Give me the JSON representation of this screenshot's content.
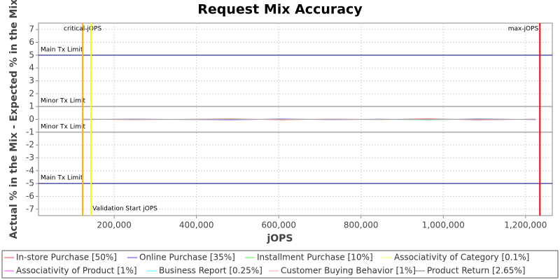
{
  "chart_data": {
    "type": "line",
    "title": "Request Mix Accuracy",
    "x_label": "jOPS",
    "y_label": "Actual % in the Mix - Expected % in the Mix",
    "xlim": [
      16000,
      1265000
    ],
    "ylim": [
      -7.5,
      7.5
    ],
    "xticks": [
      {
        "value": 200000,
        "label": "200,000"
      },
      {
        "value": 400000,
        "label": "400,000"
      },
      {
        "value": 600000,
        "label": "600,000"
      },
      {
        "value": 800000,
        "label": "800,000"
      },
      {
        "value": 1000000,
        "label": "1,000,000"
      },
      {
        "value": 1200000,
        "label": "1,200,000"
      }
    ],
    "yticks": [
      -7,
      -6,
      -5,
      -4,
      -3,
      -2,
      -1,
      0,
      1,
      2,
      3,
      4,
      5,
      6,
      7
    ],
    "grid": true,
    "legend": "bottom",
    "x": [
      125000,
      245000,
      365000,
      485000,
      605000,
      725000,
      845000,
      965000,
      1085000,
      1225000
    ],
    "series": [
      {
        "name": "In-store Purchase [50%]",
        "color": "#ff8080",
        "values": [
          0.02,
          -0.03,
          0.01,
          0.05,
          -0.04,
          0.03,
          -0.02,
          0.06,
          -0.05,
          0.02
        ]
      },
      {
        "name": "Online Purchase [35%]",
        "color": "#8080ff",
        "values": [
          -0.02,
          0.03,
          -0.01,
          -0.05,
          0.04,
          -0.03,
          0.02,
          -0.04,
          0.05,
          -0.02
        ]
      },
      {
        "name": "Installment Purchase [10%]",
        "color": "#80ff80",
        "values": [
          0.01,
          0.0,
          -0.01,
          0.01,
          0.0,
          0.01,
          -0.01,
          -0.02,
          0.01,
          0.0
        ]
      },
      {
        "name": "Associativity of Category [0.1%]",
        "color": "#ffff80",
        "values": [
          0.0,
          0.0,
          0.0,
          0.0,
          0.0,
          0.0,
          0.0,
          0.0,
          0.0,
          0.0
        ]
      },
      {
        "name": "Associativity of Product [1%]",
        "color": "#ff80ff",
        "values": [
          0.0,
          0.01,
          0.0,
          -0.01,
          0.0,
          0.01,
          0.0,
          0.0,
          -0.01,
          0.0
        ]
      },
      {
        "name": "Business Report [0.25%]",
        "color": "#80ffff",
        "values": [
          0.0,
          0.0,
          0.01,
          0.0,
          0.0,
          0.0,
          0.0,
          0.01,
          0.0,
          0.0
        ]
      },
      {
        "name": "Customer Buying Behavior [1%]",
        "color": "#ffc0c0",
        "values": [
          0.0,
          -0.01,
          0.0,
          0.01,
          0.0,
          -0.01,
          0.0,
          0.0,
          0.01,
          0.0
        ]
      },
      {
        "name": "Product Return [2.65%]",
        "color": "#a0a0a0",
        "values": [
          0.01,
          0.0,
          -0.01,
          0.0,
          0.01,
          0.0,
          -0.01,
          0.01,
          0.0,
          0.0
        ]
      }
    ],
    "y_markers": [
      {
        "label": "Main Tx Limit",
        "value": 5,
        "color": "#000080"
      },
      {
        "label": "Minor Tx Limit",
        "value": 1,
        "color": "#808080"
      },
      {
        "label": "Minor Tx Limit",
        "value": -1,
        "color": "#808080"
      },
      {
        "label": "Main Tx Limit",
        "value": -5,
        "color": "#000080"
      }
    ],
    "x_markers": [
      {
        "label": "critical-jOPS",
        "value": 123400,
        "color": "#ffb000"
      },
      {
        "label": "Validation Start jOPS",
        "value": 143800,
        "color": "#ffff00"
      },
      {
        "label": "max-jOPS",
        "value": 1234900,
        "color": "#ff0000"
      }
    ]
  }
}
